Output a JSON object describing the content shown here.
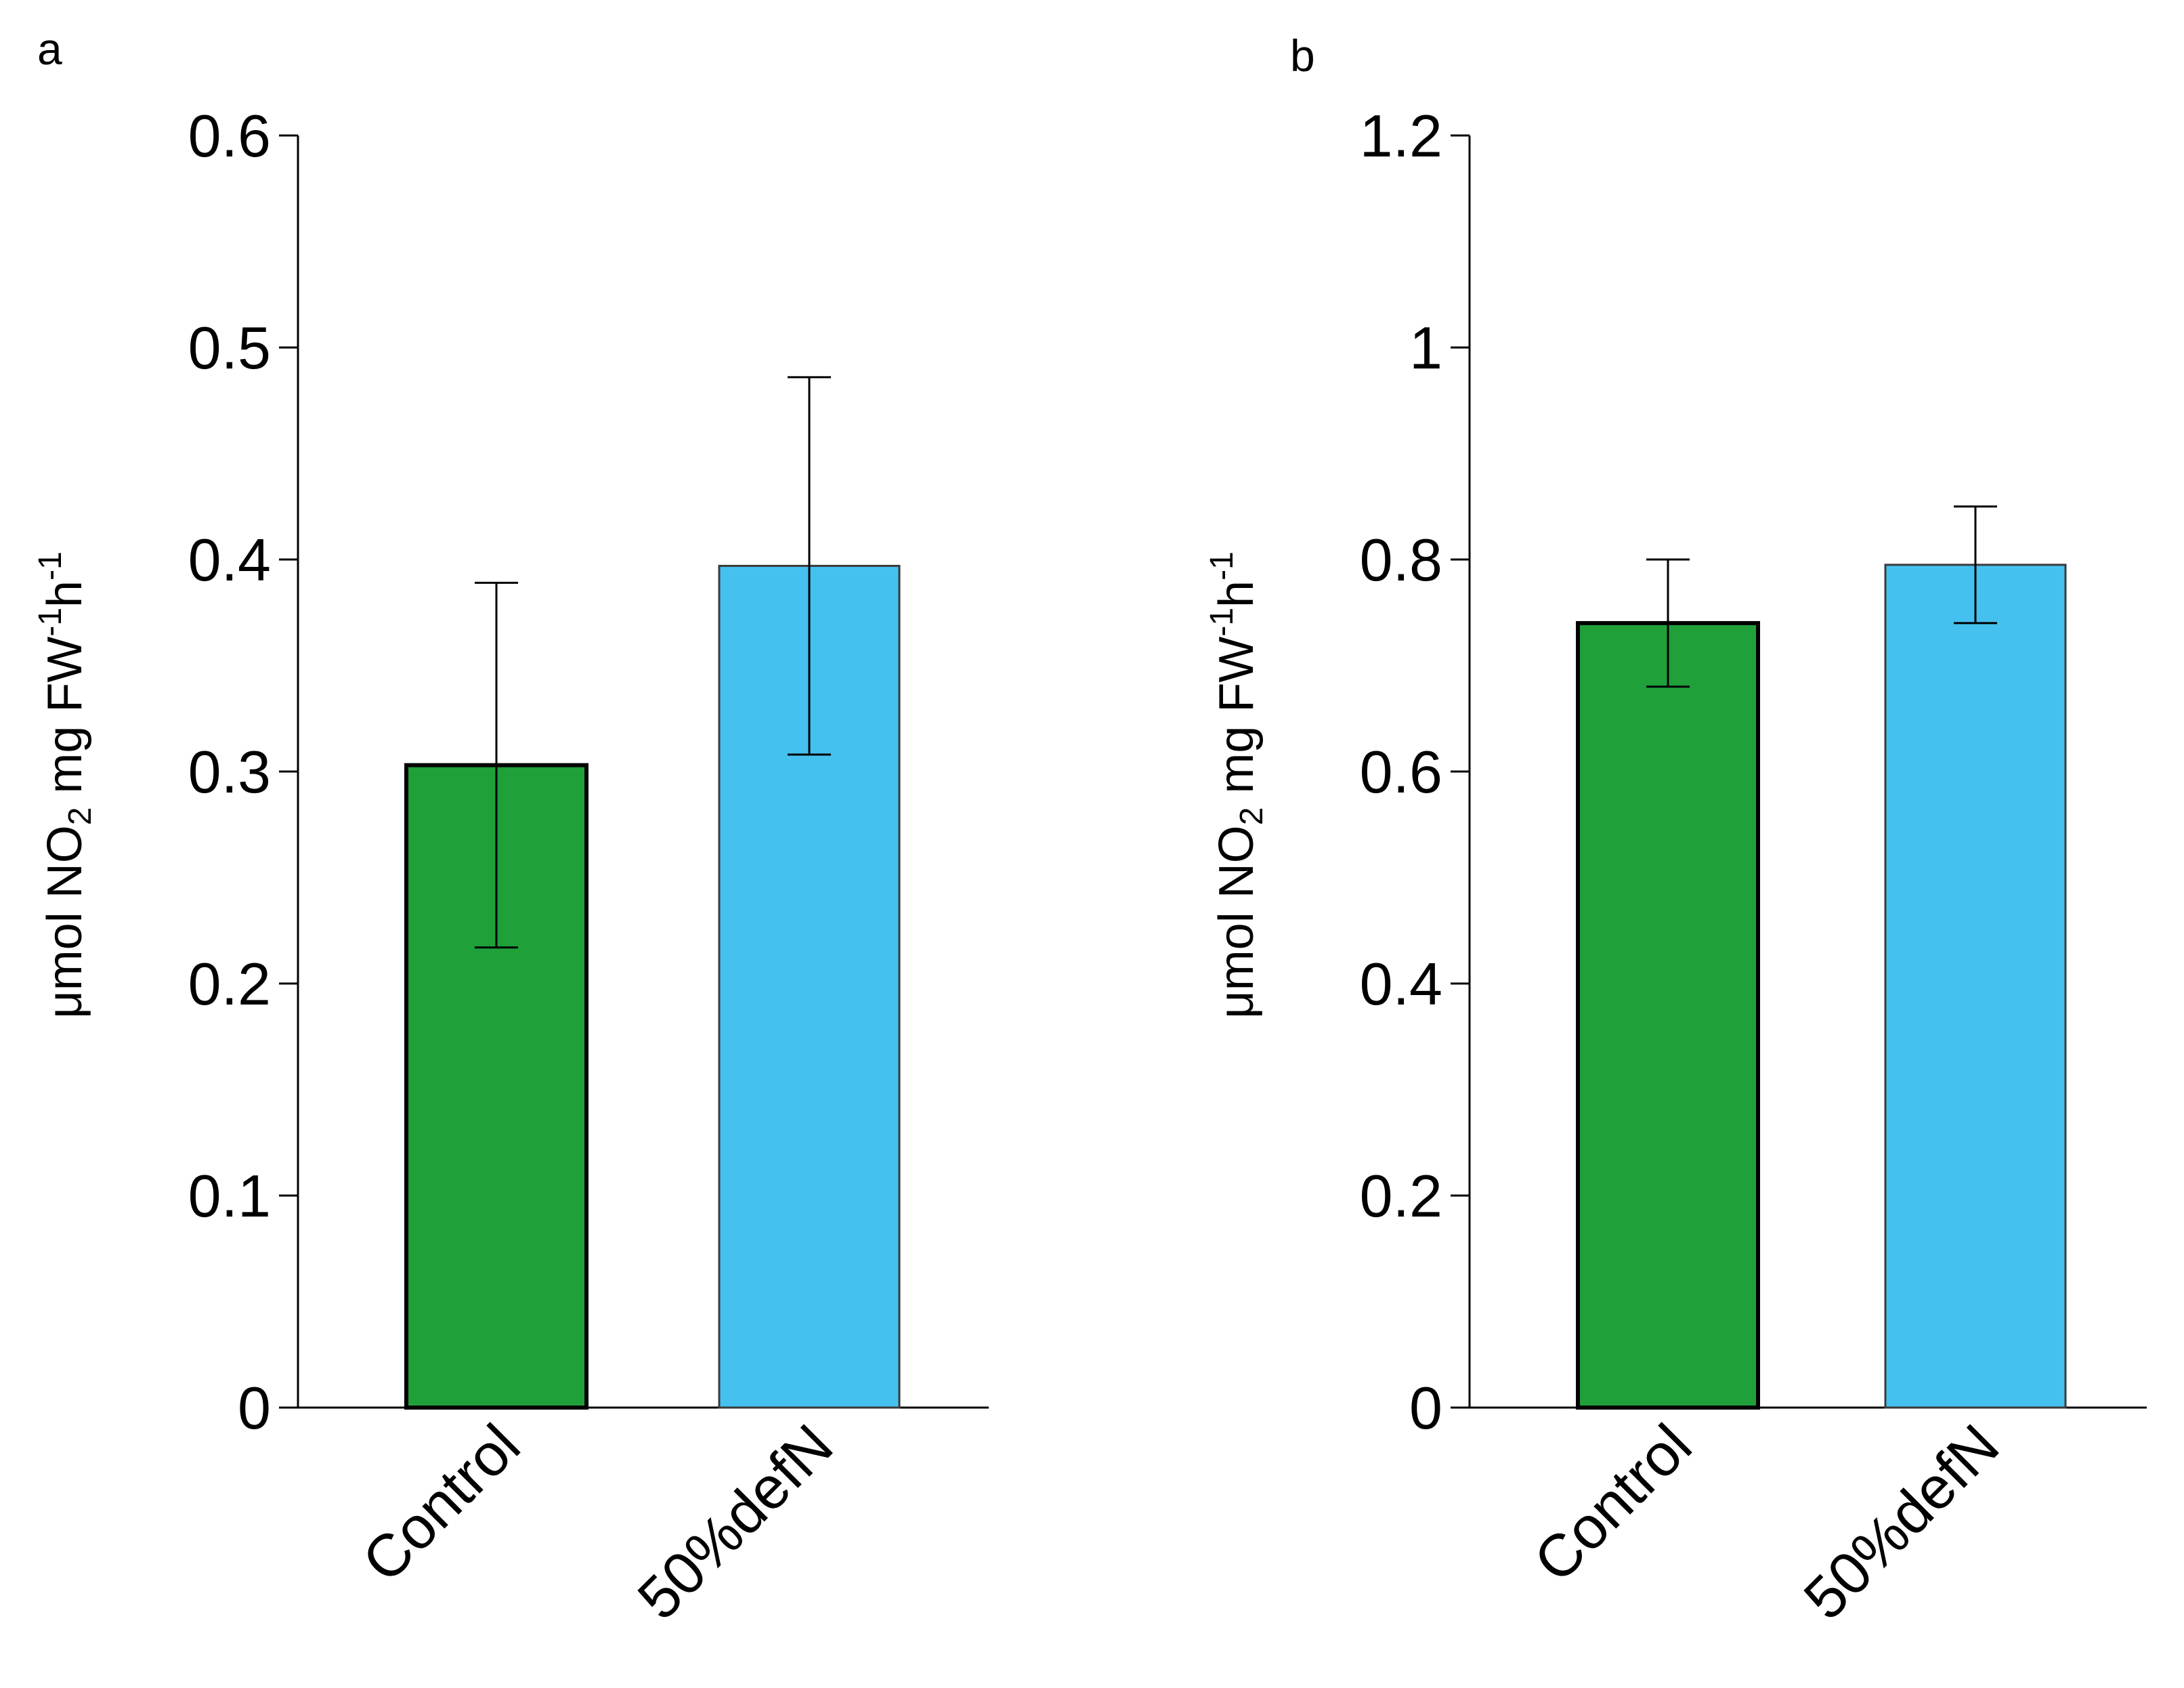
{
  "colors": {
    "control": "#20A039",
    "deficit": "#45C1EF",
    "axis": "#000000"
  },
  "ylabel_parts": {
    "unit": "μmol NO",
    "sub": "2",
    "mid": " mg FW",
    "sup1": "-1",
    "h": "h",
    "sup2": "-1"
  },
  "chart_data": [
    {
      "type": "bar",
      "panel": "a",
      "categories": [
        "Control",
        "50%defN"
      ],
      "values": [
        0.303,
        0.397
      ],
      "errors": [
        0.086,
        0.089
      ],
      "ylim": [
        0,
        0.6
      ],
      "yticks": [
        0,
        0.1,
        0.2,
        0.3,
        0.4,
        0.5,
        0.6
      ],
      "ytick_labels": [
        "0",
        "0.1",
        "0.2",
        "0.3",
        "0.4",
        "0.5",
        "0.6"
      ],
      "ylabel": "μmol NO2 mg FW-1h-1",
      "xlabel": ""
    },
    {
      "type": "bar",
      "panel": "b",
      "categories": [
        "Control",
        "50%defN"
      ],
      "values": [
        0.74,
        0.795
      ],
      "errors": [
        0.06,
        0.055
      ],
      "ylim": [
        0,
        1.2
      ],
      "yticks": [
        0,
        0.2,
        0.4,
        0.6,
        0.8,
        1.0,
        1.2
      ],
      "ytick_labels": [
        "0",
        "0.2",
        "0.4",
        "0.6",
        "0.8",
        "1",
        "1.2"
      ],
      "ylabel": "μmol NO2 mg FW-1h-1",
      "xlabel": ""
    }
  ]
}
